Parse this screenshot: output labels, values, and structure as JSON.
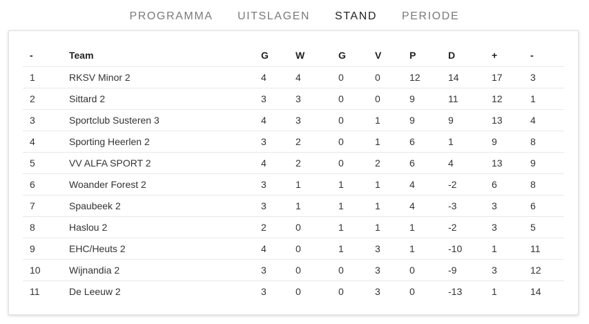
{
  "tabs": [
    {
      "label": "PROGRAMMA"
    },
    {
      "label": "UITSLAGEN"
    },
    {
      "label": "STAND"
    },
    {
      "label": "PERIODE"
    }
  ],
  "active_tab": "STAND",
  "table": {
    "headers": [
      "-",
      "Team",
      "G",
      "W",
      "G",
      "V",
      "P",
      "D",
      "+",
      "-"
    ],
    "rows": [
      [
        "1",
        "RKSV Minor 2",
        "4",
        "4",
        "0",
        "0",
        "12",
        "14",
        "17",
        "3"
      ],
      [
        "2",
        "Sittard 2",
        "3",
        "3",
        "0",
        "0",
        "9",
        "11",
        "12",
        "1"
      ],
      [
        "3",
        "Sportclub Susteren 3",
        "4",
        "3",
        "0",
        "1",
        "9",
        "9",
        "13",
        "4"
      ],
      [
        "4",
        "Sporting Heerlen 2",
        "3",
        "2",
        "0",
        "1",
        "6",
        "1",
        "9",
        "8"
      ],
      [
        "5",
        "VV ALFA SPORT 2",
        "4",
        "2",
        "0",
        "2",
        "6",
        "4",
        "13",
        "9"
      ],
      [
        "6",
        "Woander Forest 2",
        "3",
        "1",
        "1",
        "1",
        "4",
        "-2",
        "6",
        "8"
      ],
      [
        "7",
        "Spaubeek 2",
        "3",
        "1",
        "1",
        "1",
        "4",
        "-3",
        "3",
        "6"
      ],
      [
        "8",
        "Haslou 2",
        "2",
        "0",
        "1",
        "1",
        "1",
        "-2",
        "3",
        "5"
      ],
      [
        "9",
        "EHC/Heuts 2",
        "4",
        "0",
        "1",
        "3",
        "1",
        "-10",
        "1",
        "11"
      ],
      [
        "10",
        "Wijnandia 2",
        "3",
        "0",
        "0",
        "3",
        "0",
        "-9",
        "3",
        "12"
      ],
      [
        "11",
        "De Leeuw 2",
        "3",
        "0",
        "0",
        "3",
        "0",
        "-13",
        "1",
        "14"
      ]
    ]
  }
}
